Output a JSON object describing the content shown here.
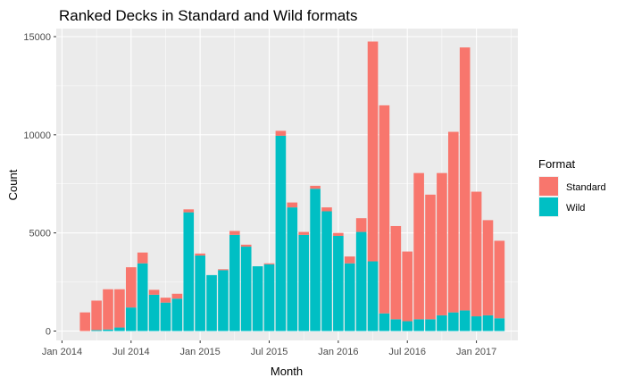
{
  "chart_data": {
    "type": "bar",
    "stacked": true,
    "title": "Ranked Decks in Standard and Wild formats",
    "xlabel": "Month",
    "ylabel": "Count",
    "ylim": [
      0,
      15500
    ],
    "y_ticks": [
      0,
      5000,
      10000,
      15000
    ],
    "y_tick_labels": [
      "0",
      "5000",
      "10000",
      "15000"
    ],
    "x_tick_labels": [
      "Jan 2014",
      "Jul 2014",
      "Jan 2015",
      "Jul 2015",
      "Jan 2016",
      "Jul 2016",
      "Jan 2017"
    ],
    "x_tick_months": [
      0,
      6,
      12,
      18,
      24,
      30,
      36
    ],
    "x_month_range": [
      -0.5,
      39.6
    ],
    "legend": {
      "title": "Format",
      "position": "right"
    },
    "grid": true,
    "colors": {
      "Standard": "#F8766D",
      "Wild": "#00BFC4",
      "panel": "#EBEBEB",
      "grid": "#FFFFFF"
    },
    "months": [
      2,
      3,
      4,
      5,
      6,
      7,
      8,
      9,
      10,
      11,
      12,
      13,
      14,
      15,
      16,
      17,
      18,
      19,
      20,
      21,
      22,
      23,
      24,
      25,
      26,
      27,
      28,
      29,
      30,
      31,
      32,
      33,
      34,
      35,
      36,
      37,
      38,
      39
    ],
    "series": [
      {
        "name": "Wild",
        "values": [
          0,
          50,
          80,
          180,
          1200,
          3450,
          1850,
          1450,
          1650,
          6050,
          3850,
          2850,
          3100,
          4900,
          4300,
          3300,
          3400,
          9950,
          6300,
          4900,
          7250,
          6100,
          4850,
          3450,
          5050,
          3550,
          900,
          600,
          500,
          600,
          600,
          800,
          950,
          1050,
          750,
          800,
          650,
          0
        ]
      },
      {
        "name": "Standard",
        "values": [
          950,
          1500,
          2050,
          1950,
          2050,
          550,
          250,
          250,
          250,
          150,
          100,
          0,
          50,
          200,
          100,
          0,
          50,
          250,
          250,
          150,
          150,
          200,
          150,
          350,
          700,
          11200,
          10600,
          4750,
          3550,
          7450,
          6350,
          7250,
          9200,
          13400,
          6350,
          4850,
          3950,
          0
        ]
      }
    ]
  }
}
